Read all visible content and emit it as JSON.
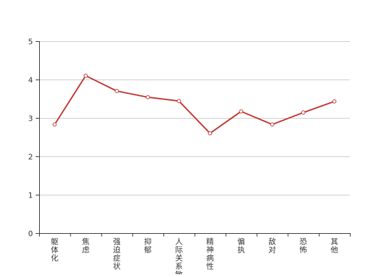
{
  "chart_data": {
    "type": "line",
    "categories": [
      "躯体化",
      "焦虑",
      "强迫症状",
      "抑郁",
      "人际关系敏感",
      "精神病性",
      "偏执",
      "敌对",
      "恐怖",
      "其他"
    ],
    "series": [
      {
        "values": [
          2.83,
          4.1,
          3.7,
          3.54,
          3.44,
          2.6,
          3.17,
          2.83,
          3.14,
          3.43
        ]
      }
    ],
    "ylim": [
      0,
      5
    ],
    "yticks": [
      0,
      1,
      2,
      3,
      4,
      5
    ],
    "grid": true,
    "colors": {
      "line": "#c23531",
      "marker_fill": "#ffffff",
      "grid": "#cccccc",
      "axis": "#333333"
    }
  }
}
